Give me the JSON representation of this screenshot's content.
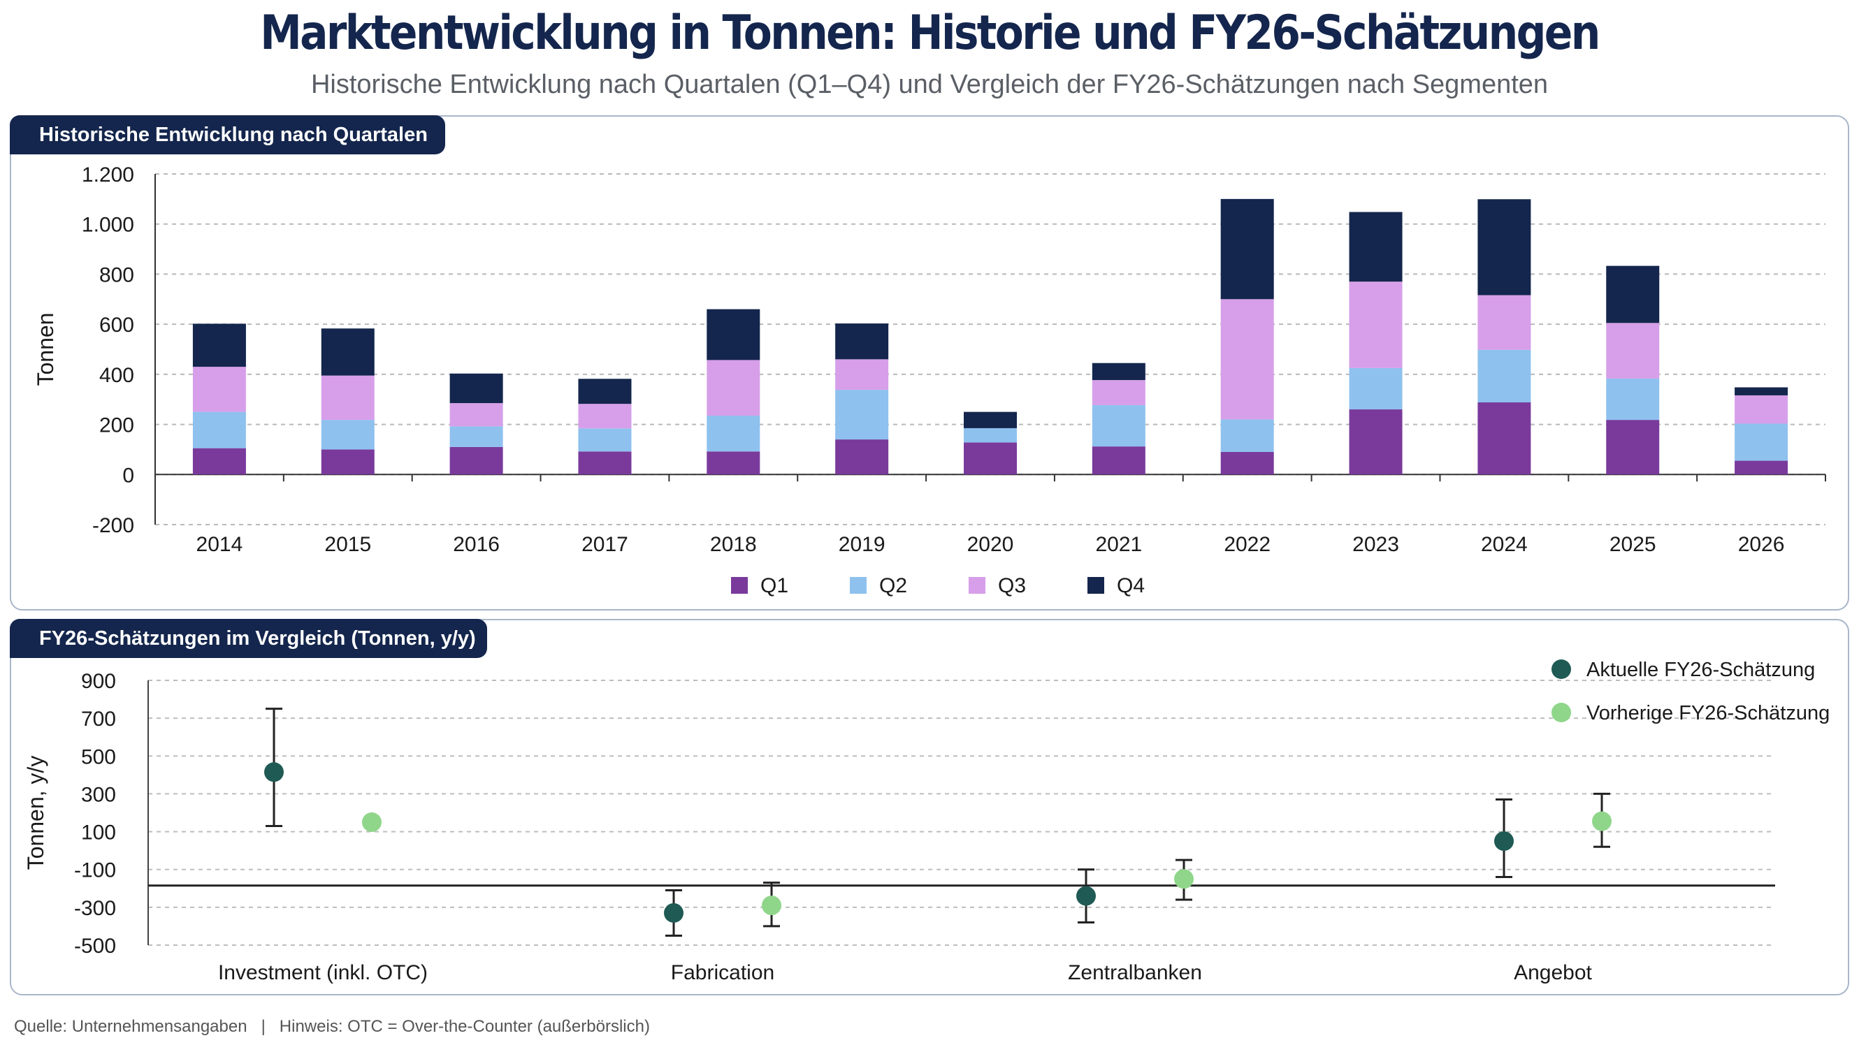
{
  "header": {
    "title": "Marktentwicklung in Tonnen: Historie und FY26-Schätzungen",
    "subtitle": "Historische Entwicklung nach Quartalen (Q1–Q4) und Vergleich der FY26-Schätzungen nach Segmenten"
  },
  "colors": {
    "Q1": "#7a3a9c",
    "Q2": "#8ec1ee",
    "Q3": "#d79fe9",
    "Q4": "#14264d",
    "current": "#1f5a54",
    "previous": "#8fd68a",
    "navy": "#14264d"
  },
  "chart_data": [
    {
      "type": "bar",
      "stacked": true,
      "title": "Historische Entwicklung nach Quartalen",
      "xlabel": "",
      "ylabel": "Tonnen",
      "ylim": [
        -200,
        1200
      ],
      "yticks": [
        -200,
        0,
        200,
        400,
        600,
        800,
        1000,
        1200
      ],
      "ytick_labels": [
        "-200",
        "0",
        "200",
        "400",
        "600",
        "800",
        "1.000",
        "1.200"
      ],
      "grid": true,
      "legend": "bottom",
      "categories": [
        "2014",
        "2015",
        "2016",
        "2017",
        "2018",
        "2019",
        "2020",
        "2021",
        "2022",
        "2023",
        "2024",
        "2025",
        "2026"
      ],
      "series": [
        {
          "name": "Q1",
          "values": [
            105,
            100,
            110,
            92,
            92,
            140,
            128,
            112,
            90,
            260,
            288,
            218,
            55
          ]
        },
        {
          "name": "Q2",
          "values": [
            145,
            118,
            82,
            92,
            143,
            198,
            57,
            165,
            130,
            165,
            210,
            165,
            148
          ]
        },
        {
          "name": "Q3",
          "values": [
            180,
            177,
            93,
            98,
            222,
            122,
            0,
            100,
            480,
            345,
            218,
            222,
            113
          ]
        },
        {
          "name": "Q4",
          "values": [
            172,
            188,
            118,
            100,
            203,
            143,
            65,
            68,
            400,
            278,
            383,
            228,
            32
          ]
        }
      ]
    },
    {
      "type": "scatter",
      "error_bars": true,
      "title": "FY26-Schätzungen im Vergleich (Tonnen, y/y)",
      "xlabel": "",
      "ylabel": "Tonnen, y/y",
      "ylim": [
        -500,
        900
      ],
      "yticks": [
        -500,
        -300,
        -100,
        100,
        300,
        500,
        700,
        900
      ],
      "ytick_labels": [
        "-500",
        "-300",
        "-100",
        "100",
        "300",
        "500",
        "700",
        "900"
      ],
      "grid": true,
      "legend": "top-right",
      "categories": [
        "Investment (inkl. OTC)",
        "Fabrication",
        "Zentralbanken",
        "Angebot"
      ],
      "series": [
        {
          "name": "Aktuelle FY26-Schätzung",
          "values": [
            415,
            -330,
            -240,
            50
          ],
          "low": [
            130,
            -450,
            -380,
            -140
          ],
          "high": [
            750,
            -210,
            -100,
            270
          ]
        },
        {
          "name": "Vorherige FY26-Schätzung",
          "values": [
            150,
            -290,
            -150,
            155
          ],
          "low": [
            null,
            -400,
            -260,
            20
          ],
          "high": [
            null,
            -170,
            -50,
            300
          ]
        }
      ]
    }
  ],
  "footer": {
    "source": "Quelle: Unternehmensangaben",
    "separator": "|",
    "note": "Hinweis: OTC = Over-the-Counter (außerbörslich)"
  }
}
